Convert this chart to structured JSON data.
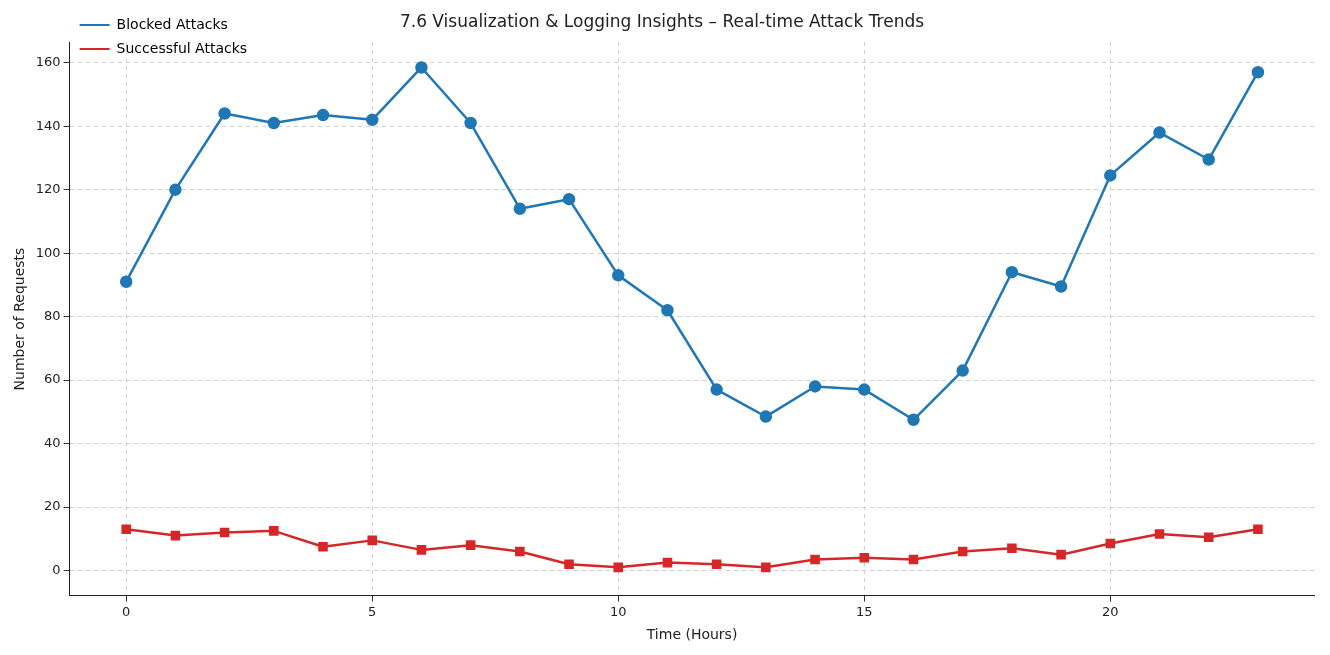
{
  "chart_data": {
    "type": "line",
    "title": "7.6 Visualization & Logging Insights – Real-time Attack Trends",
    "xlabel": "Time (Hours)",
    "ylabel": "Number of Requests",
    "x": [
      0,
      1,
      2,
      3,
      4,
      5,
      6,
      7,
      8,
      9,
      10,
      11,
      12,
      13,
      14,
      15,
      16,
      17,
      18,
      19,
      20,
      21,
      22,
      23
    ],
    "series": [
      {
        "name": "Blocked Attacks",
        "color": "#1f77b4",
        "marker": "circle",
        "values": [
          91,
          120,
          144,
          141,
          143.5,
          142,
          158.5,
          141,
          114,
          117,
          93,
          82,
          57,
          48.5,
          58,
          57,
          47.5,
          63,
          94,
          89.5,
          124.5,
          138,
          129.5,
          157
        ]
      },
      {
        "name": "Successful Attacks",
        "color": "#d62728",
        "marker": "square",
        "values": [
          13,
          11,
          12,
          12.5,
          7.5,
          9.5,
          6.5,
          8,
          6,
          2,
          1,
          2.5,
          2,
          1,
          3.5,
          4,
          3.5,
          6,
          7,
          5,
          8.5,
          11.5,
          10.5,
          13
        ]
      }
    ],
    "xlim": [
      -1.15,
      24.15
    ],
    "ylim": [
      -7.9,
      166.4
    ],
    "xticks": [
      0,
      5,
      10,
      15,
      20
    ],
    "yticks": [
      0,
      20,
      40,
      60,
      80,
      100,
      120,
      140,
      160
    ],
    "grid": true,
    "legend": "top left",
    "line_style": "solid"
  }
}
